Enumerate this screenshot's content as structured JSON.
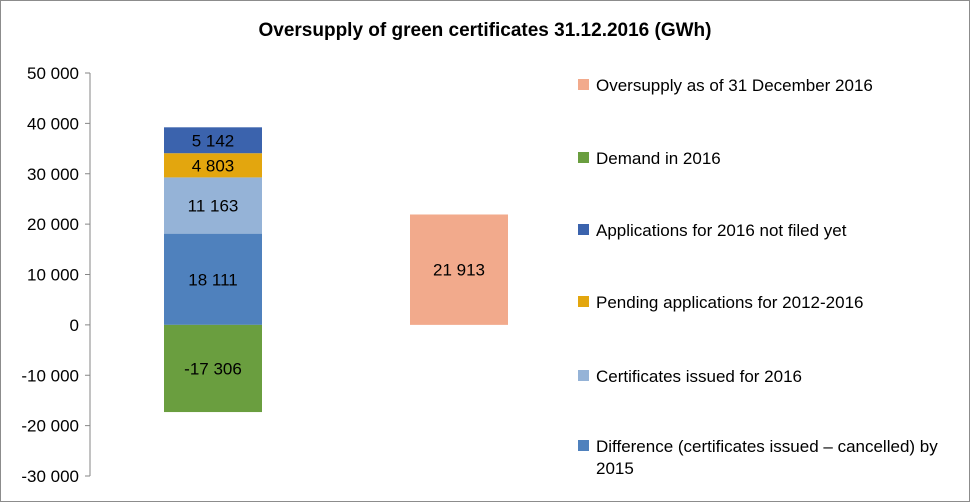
{
  "chart_data": {
    "type": "bar",
    "stacked": true,
    "title": "Oversupply of green certificates  31.12.2016 (GWh)",
    "ylim": [
      -30000,
      50000
    ],
    "yticks": [
      50000,
      40000,
      30000,
      20000,
      10000,
      0,
      -10000,
      -20000,
      -30000
    ],
    "ytick_labels": [
      "50 000",
      "40 000",
      "30 000",
      "20 000",
      "10 000",
      "0",
      "-10 000",
      "-20 000",
      "-30 000"
    ],
    "grid": false,
    "legend_position": "right",
    "series": [
      {
        "name": "Difference (certificates issued – cancelled) by 2015",
        "color": "#4f81bd",
        "column": 0,
        "value": 18111,
        "label": "18 111"
      },
      {
        "name": "Certificates issued for 2016",
        "color": "#95b3d7",
        "column": 0,
        "value": 11163,
        "label": "11 163"
      },
      {
        "name": "Pending applications for 2012-2016",
        "color": "#e3a60e",
        "column": 0,
        "value": 4803,
        "label": "4 803"
      },
      {
        "name": "Applications for 2016 not filed yet",
        "color": "#3b63ad",
        "column": 0,
        "value": 5142,
        "label": "5 142"
      },
      {
        "name": "Demand in 2016",
        "color": "#6a9e3f",
        "column": 0,
        "value": -17306,
        "label": "-17 306"
      },
      {
        "name": "Oversupply as of 31 December 2016",
        "color": "#f2aa8c",
        "column": 1,
        "value": 21913,
        "label": "21 913"
      }
    ],
    "legend_order": [
      5,
      4,
      3,
      2,
      1,
      0
    ]
  }
}
